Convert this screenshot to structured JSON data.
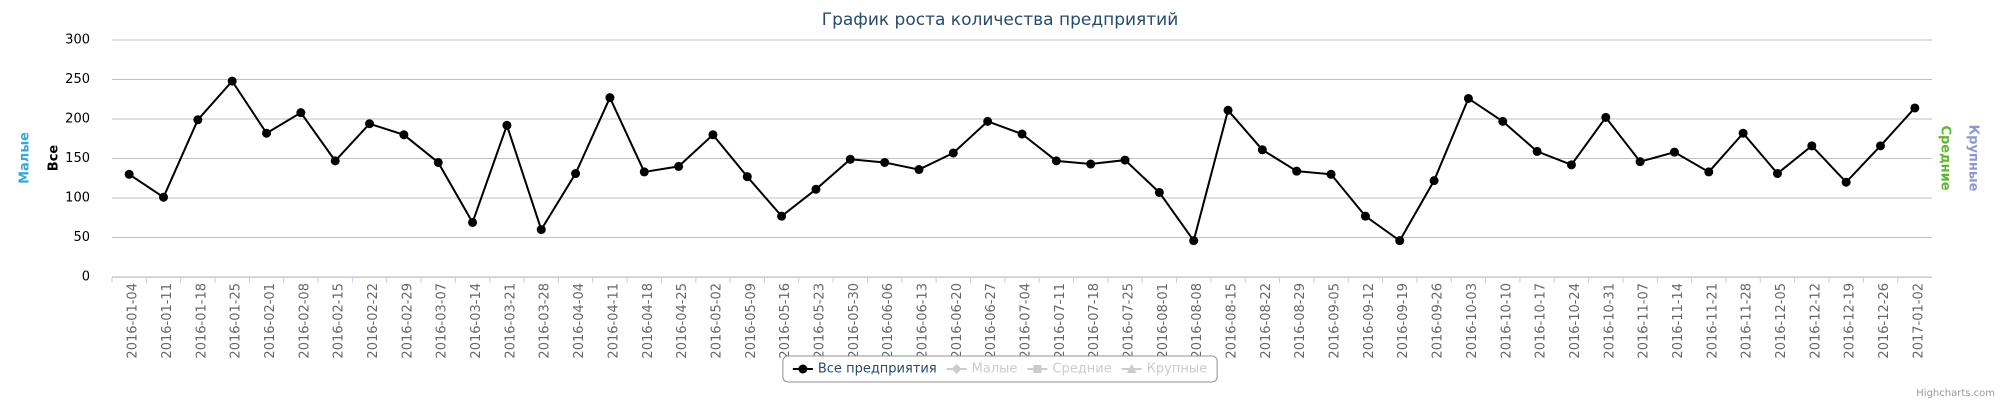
{
  "chart_data": {
    "type": "line",
    "title": "График роста количества предприятий",
    "categories": [
      "2016-01-04",
      "2016-01-11",
      "2016-01-18",
      "2016-01-25",
      "2016-02-01",
      "2016-02-08",
      "2016-02-15",
      "2016-02-22",
      "2016-02-29",
      "2016-03-07",
      "2016-03-14",
      "2016-03-21",
      "2016-03-28",
      "2016-04-04",
      "2016-04-11",
      "2016-04-18",
      "2016-04-25",
      "2016-05-02",
      "2016-05-09",
      "2016-05-16",
      "2016-05-23",
      "2016-05-30",
      "2016-06-06",
      "2016-06-13",
      "2016-06-20",
      "2016-06-27",
      "2016-07-04",
      "2016-07-11",
      "2016-07-18",
      "2016-07-25",
      "2016-08-01",
      "2016-08-08",
      "2016-08-15",
      "2016-08-22",
      "2016-08-29",
      "2016-09-05",
      "2016-09-12",
      "2016-09-19",
      "2016-09-26",
      "2016-10-03",
      "2016-10-10",
      "2016-10-17",
      "2016-10-24",
      "2016-10-31",
      "2016-11-07",
      "2016-11-14",
      "2016-11-21",
      "2016-11-28",
      "2016-12-05",
      "2016-12-12",
      "2016-12-19",
      "2016-12-26",
      "2017-01-02"
    ],
    "series": [
      {
        "name": "Все предприятия",
        "color": "#000000",
        "values": [
          130,
          101,
          199,
          248,
          182,
          208,
          147,
          194,
          180,
          145,
          69,
          192,
          60,
          131,
          227,
          133,
          140,
          180,
          127,
          77,
          111,
          149,
          145,
          136,
          157,
          197,
          181,
          147,
          143,
          148,
          107,
          46,
          211,
          161,
          134,
          130,
          77,
          46,
          122,
          226,
          197,
          159,
          142,
          202,
          146,
          158,
          133,
          182,
          131,
          166,
          120,
          166,
          214
        ]
      }
    ],
    "legend_inactive": [
      "Малые",
      "Средние",
      "Крупные"
    ],
    "left_axis_titles": [
      {
        "text": "Малые",
        "color": "#3aa7dc"
      },
      {
        "text": "Все",
        "color": "#000000"
      }
    ],
    "right_axis_titles": [
      {
        "text": "Средние",
        "color": "#5cb82e"
      },
      {
        "text": "Крупные",
        "color": "#8e97d4"
      }
    ],
    "ylim": [
      0,
      300
    ],
    "yticks": [
      0,
      50,
      100,
      150,
      200,
      250,
      300
    ],
    "grid": true,
    "credits": "Highcharts.com"
  }
}
